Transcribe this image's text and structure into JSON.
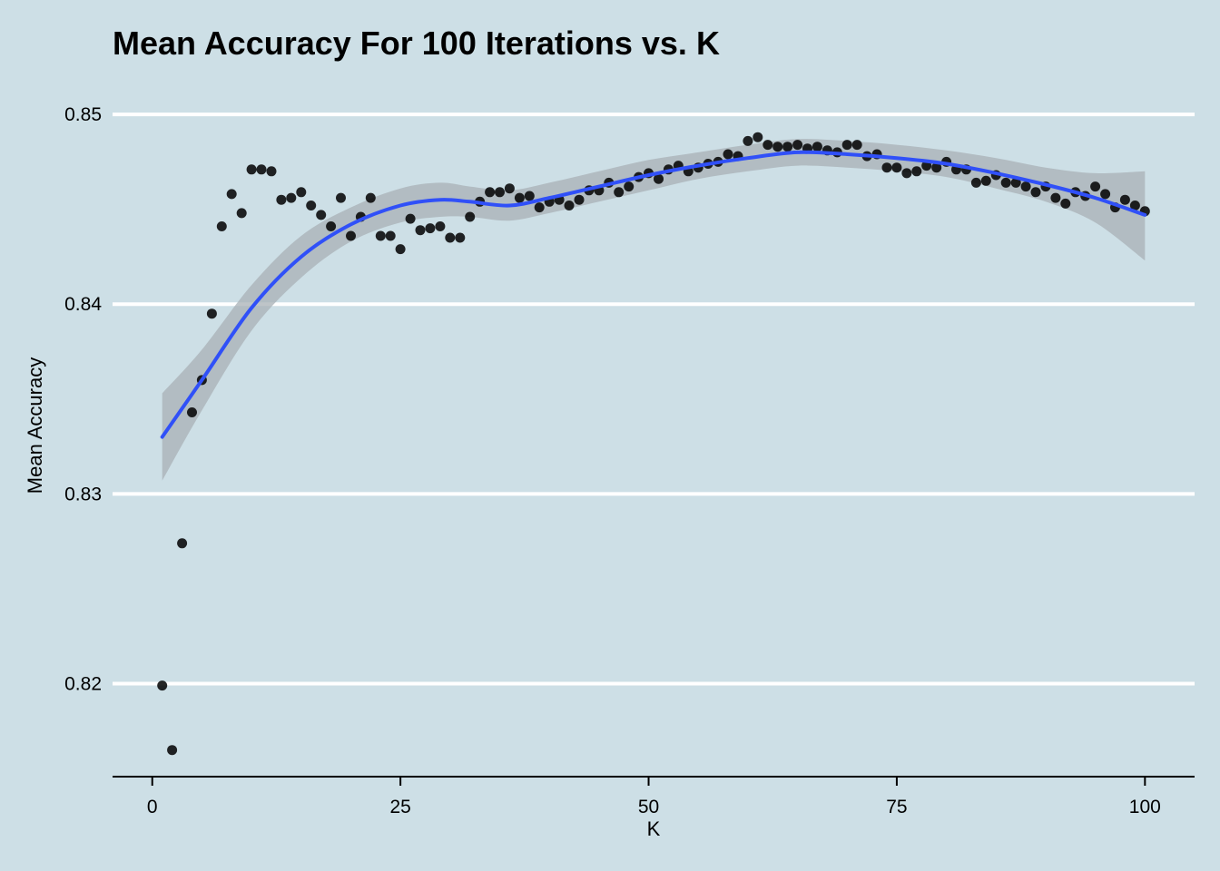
{
  "chart_data": {
    "type": "scatter",
    "title": "Mean Accuracy For 100 Iterations vs. K",
    "xlabel": "K",
    "ylabel": "Mean Accuracy",
    "xlim": [
      -4,
      105
    ],
    "ylim": [
      0.8151,
      0.8523
    ],
    "x_ticks": [
      0,
      25,
      50,
      75,
      100
    ],
    "x_tick_labels": [
      "0",
      "25",
      "50",
      "75",
      "100"
    ],
    "y_ticks": [
      0.82,
      0.83,
      0.84,
      0.85
    ],
    "y_tick_labels": [
      "0.82",
      "0.83",
      "0.84",
      "0.85"
    ],
    "grid": "horizontal major lines",
    "colors": {
      "background": "#cddfe6",
      "grid": "#ffffff",
      "points": "#000000",
      "smooth_line": "#3050f8",
      "confidence_band": "#a8b0b5"
    },
    "series": [
      {
        "type": "points",
        "x": [
          1,
          2,
          3,
          4,
          5,
          6,
          7,
          8,
          9,
          10,
          11,
          12,
          13,
          14,
          15,
          16,
          17,
          18,
          19,
          20,
          21,
          22,
          23,
          24,
          25,
          26,
          27,
          28,
          29,
          30,
          31,
          32,
          33,
          34,
          35,
          36,
          37,
          38,
          39,
          40,
          41,
          42,
          43,
          44,
          45,
          46,
          47,
          48,
          49,
          50,
          51,
          52,
          53,
          54,
          55,
          56,
          57,
          58,
          59,
          60,
          61,
          62,
          63,
          64,
          65,
          66,
          67,
          68,
          69,
          70,
          71,
          72,
          73,
          74,
          75,
          76,
          77,
          78,
          79,
          80,
          81,
          82,
          83,
          84,
          85,
          86,
          87,
          88,
          89,
          90,
          91,
          92,
          93,
          94,
          95,
          96,
          97,
          98,
          99,
          100
        ],
        "y": [
          0.8199,
          0.8165,
          0.8274,
          0.8343,
          0.836,
          0.8395,
          0.8441,
          0.8458,
          0.8448,
          0.8471,
          0.8471,
          0.847,
          0.8455,
          0.8456,
          0.8459,
          0.8452,
          0.8447,
          0.8441,
          0.8456,
          0.8436,
          0.8446,
          0.8456,
          0.8436,
          0.8436,
          0.8429,
          0.8445,
          0.8439,
          0.844,
          0.8441,
          0.8435,
          0.8435,
          0.8446,
          0.8454,
          0.8459,
          0.8459,
          0.8461,
          0.8456,
          0.8457,
          0.8451,
          0.8454,
          0.8455,
          0.8452,
          0.8455,
          0.846,
          0.846,
          0.8464,
          0.8459,
          0.8462,
          0.8467,
          0.8469,
          0.8466,
          0.8471,
          0.8473,
          0.847,
          0.8472,
          0.8474,
          0.8475,
          0.8479,
          0.8478,
          0.8486,
          0.8488,
          0.8484,
          0.8483,
          0.8483,
          0.8484,
          0.8482,
          0.8483,
          0.8481,
          0.848,
          0.8484,
          0.8484,
          0.8478,
          0.8479,
          0.8472,
          0.8472,
          0.8469,
          0.847,
          0.8473,
          0.8472,
          0.8475,
          0.8471,
          0.8471,
          0.8464,
          0.8465,
          0.8468,
          0.8464,
          0.8464,
          0.8462,
          0.8459,
          0.8462,
          0.8456,
          0.8453,
          0.8459,
          0.8457,
          0.8462,
          0.8458,
          0.8451,
          0.8455,
          0.8452,
          0.8449
        ]
      },
      {
        "type": "smooth",
        "x": [
          1,
          5,
          10,
          15,
          20,
          25,
          29,
          32,
          36,
          40,
          45,
          50,
          55,
          60,
          65,
          70,
          75,
          80,
          85,
          90,
          95,
          100
        ],
        "y": [
          0.833,
          0.836,
          0.8398,
          0.8425,
          0.8442,
          0.8452,
          0.8455,
          0.8454,
          0.8452,
          0.8456,
          0.8462,
          0.8468,
          0.8473,
          0.8477,
          0.848,
          0.8479,
          0.8477,
          0.8474,
          0.8469,
          0.8463,
          0.8456,
          0.8447
        ],
        "lower": [
          0.8307,
          0.8344,
          0.8386,
          0.8414,
          0.8433,
          0.8443,
          0.8446,
          0.8446,
          0.8444,
          0.8448,
          0.8454,
          0.846,
          0.8466,
          0.847,
          0.8473,
          0.8472,
          0.847,
          0.8467,
          0.8461,
          0.8454,
          0.8443,
          0.8423
        ],
        "upper": [
          0.8353,
          0.8376,
          0.841,
          0.8436,
          0.8451,
          0.8461,
          0.8464,
          0.8462,
          0.846,
          0.8464,
          0.847,
          0.8476,
          0.848,
          0.8484,
          0.8487,
          0.8486,
          0.8484,
          0.8481,
          0.8477,
          0.8472,
          0.8469,
          0.847
        ]
      }
    ]
  }
}
